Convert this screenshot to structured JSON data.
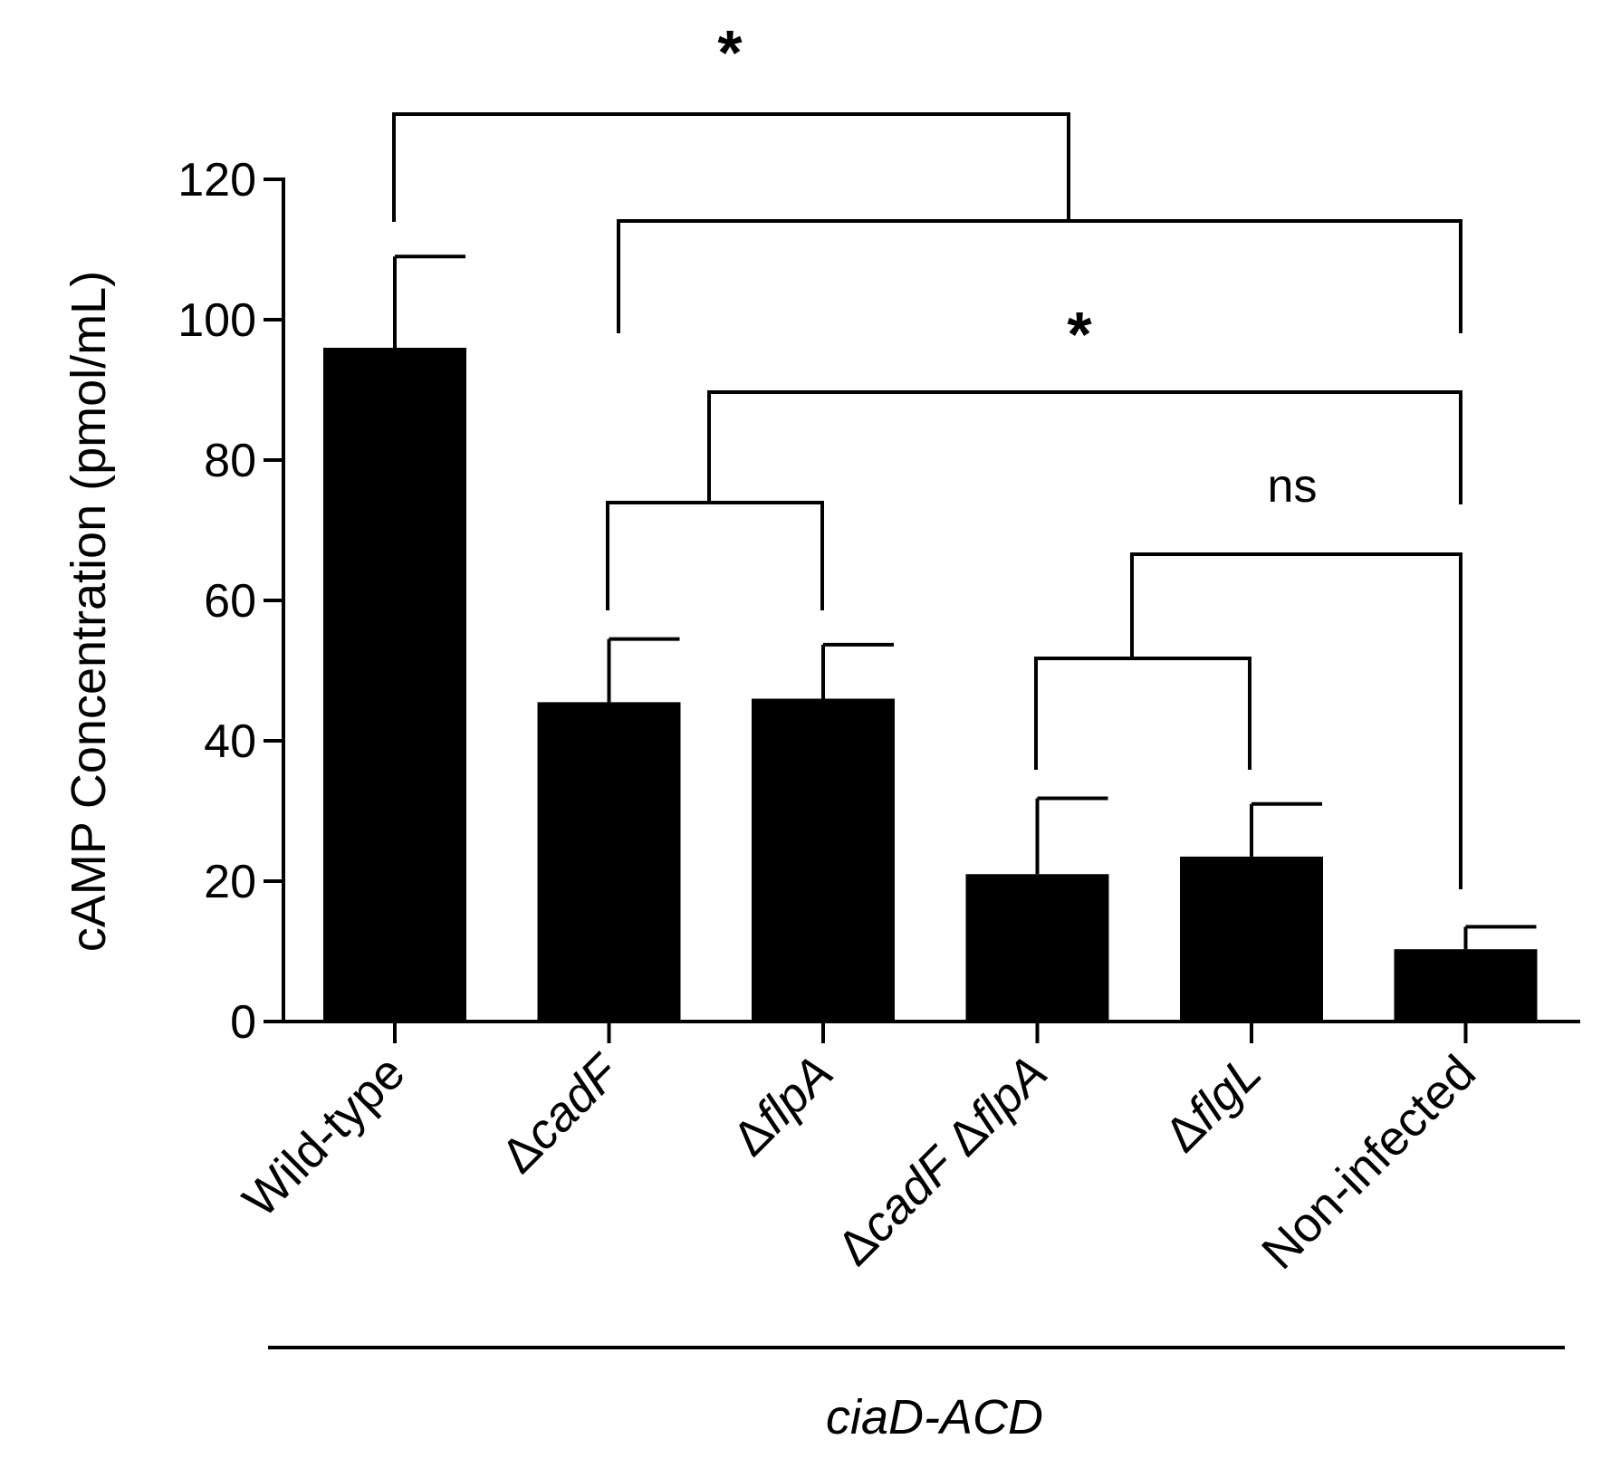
{
  "chart_data": {
    "type": "bar",
    "ylabel": "cAMP Concentration (pmol/mL)",
    "ylim": [
      0,
      120
    ],
    "yticks": [
      0,
      20,
      40,
      60,
      80,
      100,
      120
    ],
    "categories": [
      {
        "prefix": "",
        "italic": "",
        "suffix": "Wild-type"
      },
      {
        "prefix": "Δ",
        "italic": "cadF",
        "suffix": ""
      },
      {
        "prefix": "Δ",
        "italic": "flpA",
        "suffix": ""
      },
      {
        "prefix": "Δ",
        "italic": "cadF Δ",
        "suffix": "",
        "full_italic": "cadF ΔflpA"
      },
      {
        "prefix": "Δ",
        "italic": "flgL",
        "suffix": ""
      },
      {
        "prefix": "",
        "italic": "",
        "suffix": "Non-infected"
      }
    ],
    "category_text": [
      "Wild-type",
      "ΔcadF",
      "ΔflpA",
      "ΔcadF ΔflpA",
      "ΔflgL",
      "Non-infected"
    ],
    "values": [
      96,
      45.5,
      46,
      21,
      23.5,
      10.3
    ],
    "errors": [
      13,
      9,
      7.7,
      10.8,
      7.5,
      3.2
    ],
    "bar_color": "#000000",
    "group_label": "ciaD-ACD",
    "significance": [
      {
        "label": "*",
        "from": "Wild-type",
        "to": "ΔcadF … Non-infected"
      },
      {
        "label": "*",
        "from": "ΔcadF / ΔflpA",
        "to": "Non-infected"
      },
      {
        "label": "ns",
        "from": "ΔcadF ΔflpA / ΔflgL",
        "to": "Non-infected"
      }
    ]
  }
}
